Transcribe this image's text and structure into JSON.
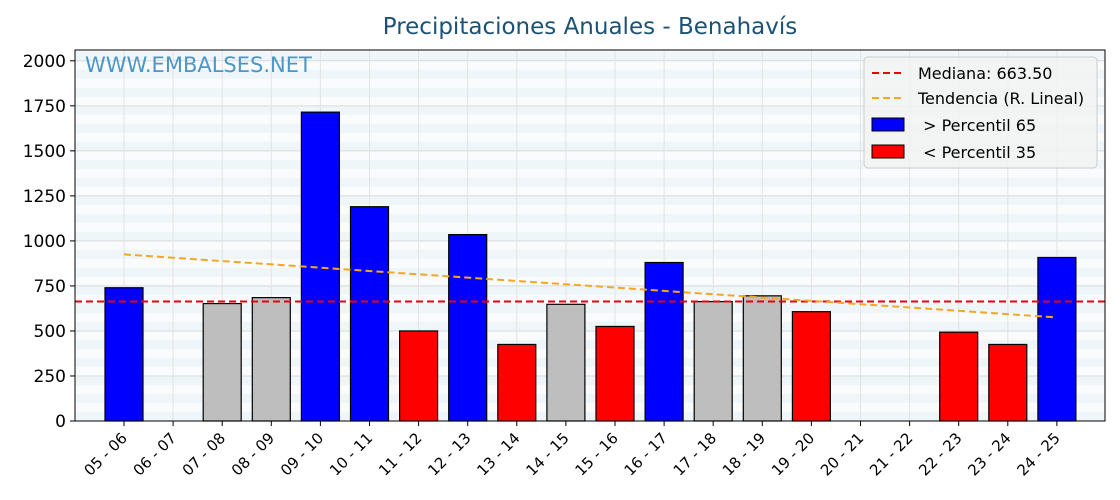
{
  "chart_data": {
    "type": "bar",
    "title": "Precipitaciones Anuales - Benahavís",
    "watermark": "WWW.EMBALSES.NET",
    "xlabel": "",
    "ylabel": "",
    "ylim": [
      0,
      2060
    ],
    "yticks": [
      0,
      250,
      500,
      750,
      1000,
      1250,
      1500,
      1750,
      2000
    ],
    "categories": [
      "05 - 06",
      "06 - 07",
      "07 - 08",
      "08 - 09",
      "09 - 10",
      "10 - 11",
      "11 - 12",
      "12 - 13",
      "13 - 14",
      "14 - 15",
      "15 - 16",
      "16 - 17",
      "17 - 18",
      "18 - 19",
      "19 - 20",
      "20 - 21",
      "21 - 22",
      "22 - 23",
      "23 - 24",
      "24 - 25"
    ],
    "values": [
      740,
      0,
      652,
      685,
      1715,
      1190,
      500,
      1035,
      425,
      648,
      525,
      880,
      663,
      695,
      607,
      0,
      0,
      493,
      425,
      908
    ],
    "classes": [
      "high",
      "none",
      "mid",
      "mid",
      "high",
      "high",
      "low",
      "high",
      "low",
      "mid",
      "low",
      "high",
      "mid",
      "mid",
      "low",
      "none",
      "none",
      "low",
      "low",
      "high"
    ],
    "colors": {
      "high": "#0000ff",
      "low": "#ff0000",
      "mid": "#bebebe",
      "median": "#e8000b",
      "trend": "#f5a623"
    },
    "median": {
      "label": "Mediana: 663.50",
      "value": 663.5
    },
    "trend": {
      "label": "Tendencia (R. Lineal)",
      "start": 925,
      "end": 575
    },
    "legend": {
      "high_label": " > Percentil 65",
      "low_label": " < Percentil 35",
      "position": "top-right"
    },
    "grid": true
  }
}
